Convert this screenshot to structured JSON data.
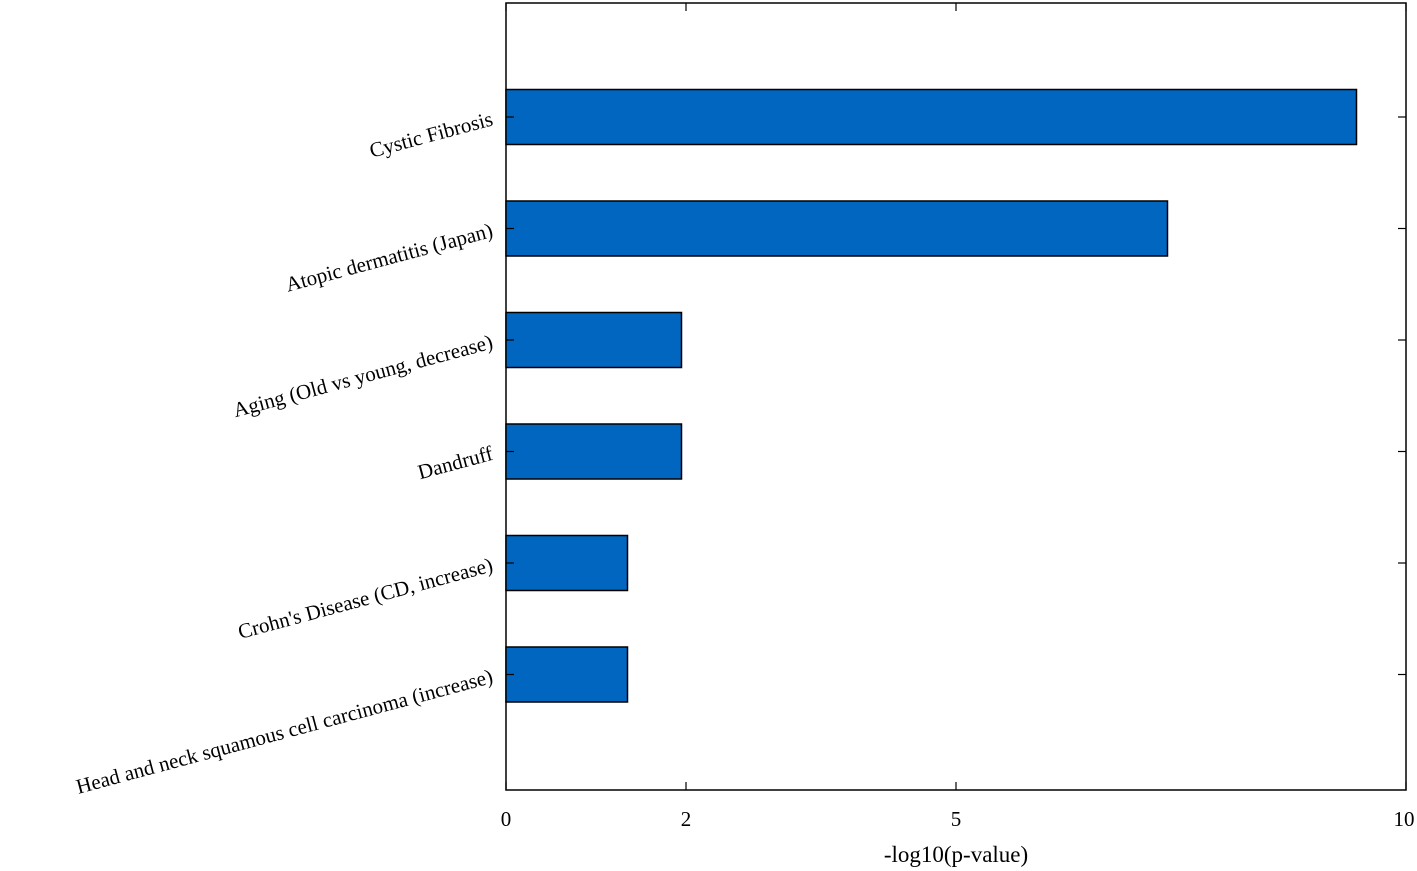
{
  "chart_data": {
    "type": "bar",
    "orientation": "horizontal",
    "categories": [
      "Cystic Fibrosis",
      "Atopic dermatitis (Japan)",
      "Aging (Old vs young, decrease)",
      "Dandruff",
      "Crohn's Disease (CD, increase)",
      "Head and neck squamous cell carcinoma (increase)"
    ],
    "values": [
      9.45,
      7.35,
      1.95,
      1.95,
      1.35,
      1.35
    ],
    "xlabel": "-log10(p-value)",
    "ylabel": "",
    "xlim": [
      0,
      10
    ],
    "xticks": [
      0,
      2,
      5,
      10
    ],
    "xtick_labels": [
      "0",
      "2",
      "5",
      "10"
    ],
    "bar_color": "#0066bf",
    "edge_color": "#000000",
    "grid": false,
    "legend": "none"
  }
}
